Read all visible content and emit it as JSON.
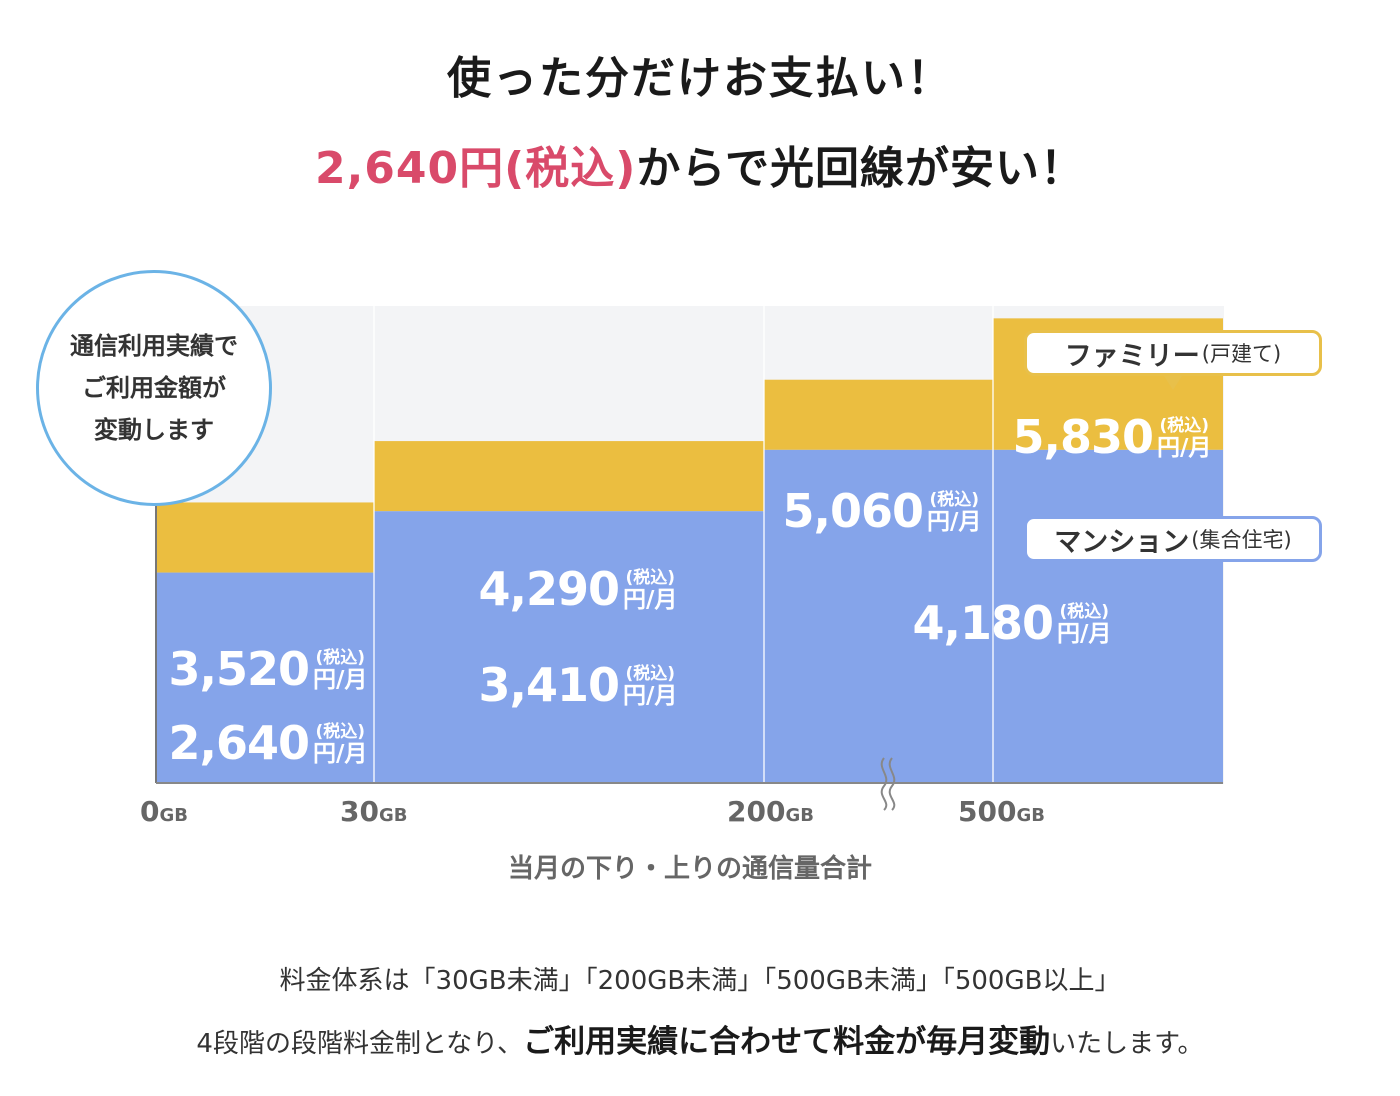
{
  "header": {
    "title_line1": "使った分だけお支払い！",
    "title_line2_highlight": "2,640円(税込)",
    "title_line2_rest": "からで光回線が安い！"
  },
  "bubble": {
    "lines": [
      "通信利用実績で",
      "ご利用金額が",
      "変動します"
    ]
  },
  "tags": {
    "family_main": "ファミリー",
    "family_sub": "(戸建て)",
    "mansion_main": "マンション",
    "mansion_sub": "(集合住宅)"
  },
  "chart_data": {
    "type": "bar",
    "xlabel": "当月の下り・上りの通信量合計",
    "tiers": [
      "0GB",
      "30GB",
      "200GB",
      "500GB"
    ],
    "tick_labels": [
      {
        "num": "0",
        "unit": "GB"
      },
      {
        "num": "30",
        "unit": "GB"
      },
      {
        "num": "200",
        "unit": "GB"
      },
      {
        "num": "500",
        "unit": "GB"
      }
    ],
    "series": [
      {
        "name": "マンション(集合住宅)",
        "color": "#85a4ea",
        "values": [
          2640,
          3410,
          4180,
          4180
        ]
      },
      {
        "name": "ファミリー(戸建て)",
        "color": "#ebbe40",
        "values": [
          3520,
          4290,
          5060,
          5830
        ]
      }
    ],
    "ylim": [
      0,
      7000
    ],
    "tax_label": "(税込)",
    "unit_label": "円/月",
    "price_labels": {
      "mansion": [
        "2,640",
        "3,410",
        "4,180"
      ],
      "family": [
        "3,520",
        "4,290",
        "5,060",
        "5,830"
      ]
    },
    "axis_break": true
  },
  "footer": {
    "line1": "料金体系は「30GB未満」「200GB未満」「500GB未満」「500GB以上」",
    "line2_start": "4段階の段階料金制となり、",
    "line2_bold": "ご利用実績に合わせて料金が毎月変動",
    "line2_end": "いたします。"
  }
}
